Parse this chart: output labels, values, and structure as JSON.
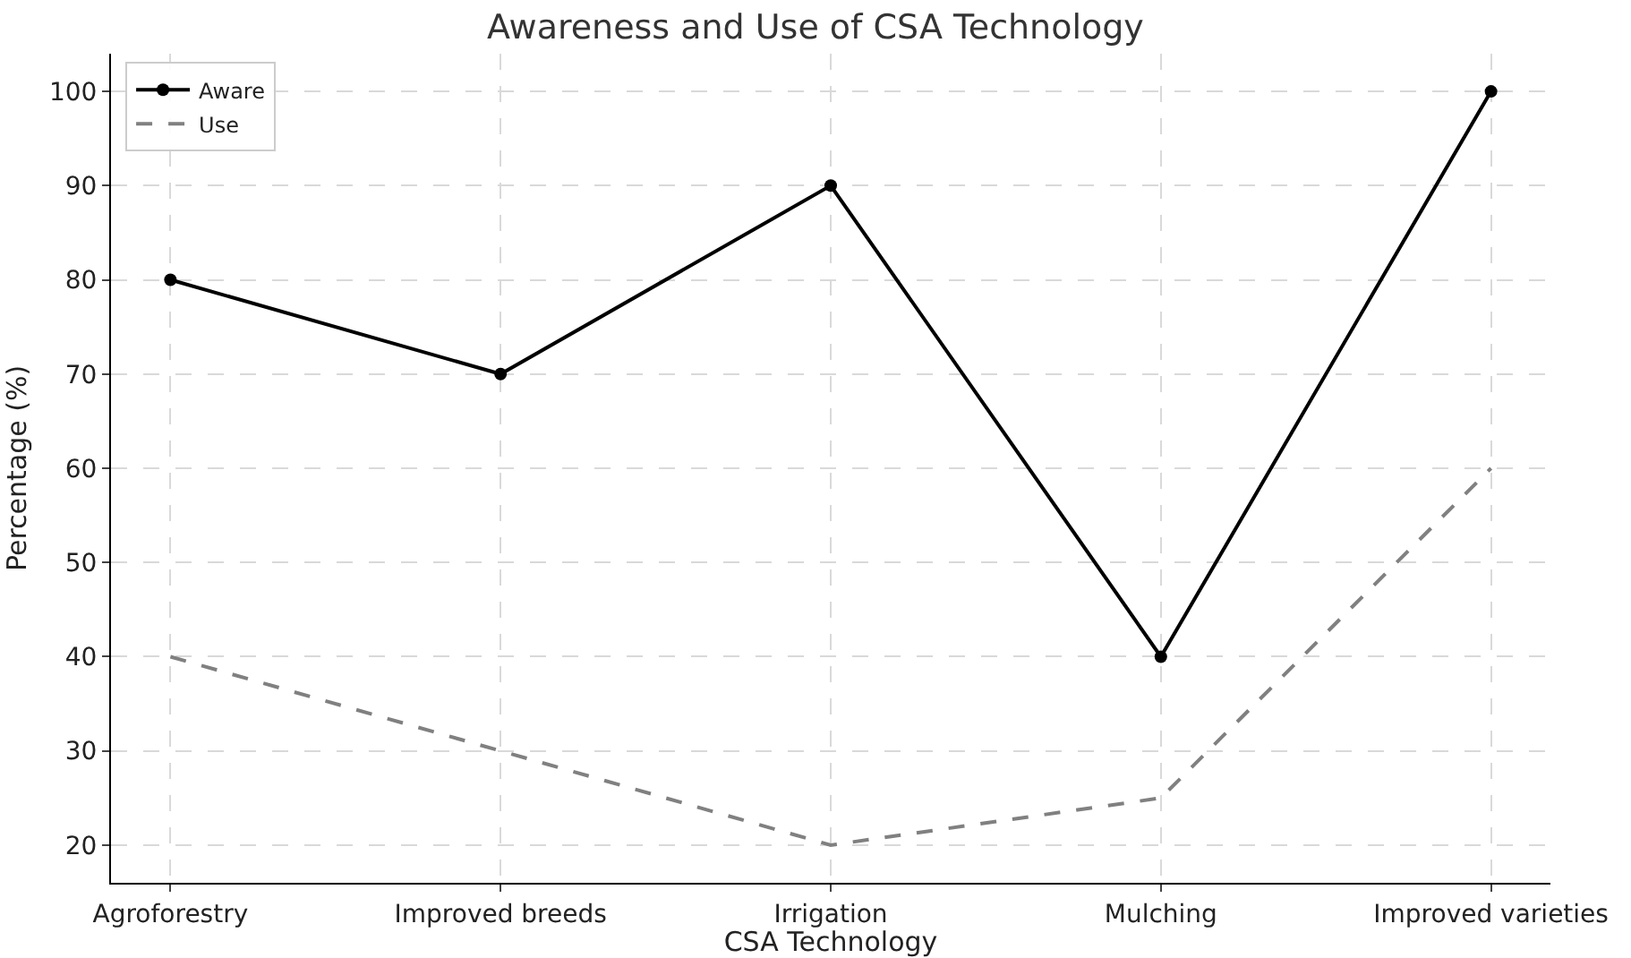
{
  "chart_data": {
    "type": "line",
    "title": "Awareness and Use of CSA Technology",
    "xlabel": "CSA Technology",
    "ylabel": "Percentage (%)",
    "categories": [
      "Agroforestry",
      "Improved breeds",
      "Irrigation",
      "Mulching",
      "Improved varieties"
    ],
    "series": [
      {
        "name": "Aware",
        "color": "#000000",
        "values": [
          80,
          70,
          90,
          40,
          100
        ],
        "marker": "circle",
        "line_style": "solid"
      },
      {
        "name": "Use",
        "color": "#808080",
        "values": [
          40,
          30,
          20,
          25,
          60
        ],
        "marker": "none",
        "line_style": "dashed"
      }
    ],
    "ylim": [
      16,
      104
    ],
    "yticks": [
      20,
      30,
      40,
      50,
      60,
      70,
      80,
      90,
      100
    ],
    "grid": true,
    "legend": "top left"
  }
}
